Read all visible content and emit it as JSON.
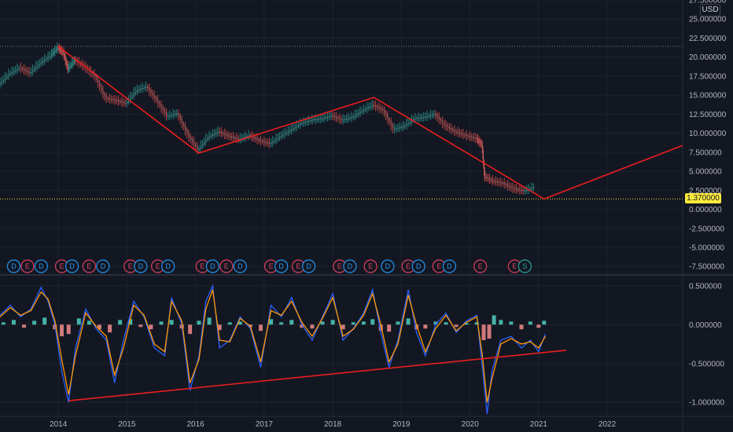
{
  "currency": "USD",
  "last_price_label": "1.370000",
  "chart_data": [
    {
      "type": "line",
      "title": "",
      "ylim": [
        -8.3,
        27.5
      ],
      "y_ticks": [
        "27.500000",
        "25.000000",
        "22.500000",
        "20.000000",
        "17.500000",
        "15.000000",
        "12.500000",
        "10.000000",
        "7.500000",
        "5.000000",
        "2.500000",
        "0.000000",
        "-2.500000",
        "-5.000000",
        "-7.500000"
      ],
      "y_tick_values": [
        27.5,
        25,
        22.5,
        20,
        17.5,
        15,
        12.5,
        10,
        7.5,
        5,
        2.5,
        0,
        -2.5,
        -5,
        -7.5
      ],
      "x_ticks": [
        "2014",
        "2015",
        "2016",
        "2017",
        "2018",
        "2019",
        "2020",
        "2021",
        "2022"
      ],
      "x_tick_values": [
        2014,
        2015,
        2016,
        2017,
        2018,
        2019,
        2020,
        2021,
        2022
      ],
      "xlim": [
        2013.15,
        2023.1
      ],
      "last_price": 1.37,
      "resistance_level": 21.4,
      "price": [
        [
          2013.15,
          16.4
        ],
        [
          2013.3,
          17.8
        ],
        [
          2013.45,
          18.6
        ],
        [
          2013.6,
          17.9
        ],
        [
          2013.75,
          19.2
        ],
        [
          2013.9,
          20.2
        ],
        [
          2014.0,
          21.2
        ],
        [
          2014.08,
          20.6
        ],
        [
          2014.15,
          18.4
        ],
        [
          2014.25,
          19.6
        ],
        [
          2014.4,
          18.7
        ],
        [
          2014.55,
          17.5
        ],
        [
          2014.7,
          14.6
        ],
        [
          2014.85,
          14.3
        ],
        [
          2015.0,
          13.9
        ],
        [
          2015.15,
          15.6
        ],
        [
          2015.3,
          16.1
        ],
        [
          2015.45,
          14.3
        ],
        [
          2015.6,
          12.2
        ],
        [
          2015.75,
          12.6
        ],
        [
          2015.9,
          9.8
        ],
        [
          2016.05,
          7.8
        ],
        [
          2016.2,
          9.5
        ],
        [
          2016.35,
          10.2
        ],
        [
          2016.5,
          9.6
        ],
        [
          2016.65,
          9.2
        ],
        [
          2016.8,
          9.7
        ],
        [
          2016.95,
          9.0
        ],
        [
          2017.1,
          8.6
        ],
        [
          2017.25,
          9.6
        ],
        [
          2017.4,
          10.4
        ],
        [
          2017.55,
          11.3
        ],
        [
          2017.7,
          11.7
        ],
        [
          2017.85,
          11.9
        ],
        [
          2018.0,
          12.3
        ],
        [
          2018.15,
          11.7
        ],
        [
          2018.3,
          12.1
        ],
        [
          2018.45,
          13.0
        ],
        [
          2018.6,
          13.7
        ],
        [
          2018.75,
          13.0
        ],
        [
          2018.9,
          10.5
        ],
        [
          2019.05,
          10.9
        ],
        [
          2019.2,
          11.9
        ],
        [
          2019.35,
          12.1
        ],
        [
          2019.5,
          12.5
        ],
        [
          2019.65,
          11.0
        ],
        [
          2019.8,
          10.2
        ],
        [
          2019.95,
          9.7
        ],
        [
          2020.1,
          9.3
        ],
        [
          2020.18,
          8.5
        ],
        [
          2020.22,
          4.3
        ],
        [
          2020.35,
          3.7
        ],
        [
          2020.5,
          3.4
        ],
        [
          2020.65,
          2.7
        ],
        [
          2020.8,
          2.4
        ],
        [
          2020.95,
          2.9
        ]
      ],
      "trendline": [
        [
          2014.0,
          21.4
        ],
        [
          2016.05,
          7.4
        ],
        [
          2018.6,
          14.7
        ],
        [
          2021.08,
          1.37
        ],
        [
          2023.1,
          8.4
        ]
      ],
      "events": [
        {
          "label": "D",
          "kind": "dividend",
          "x": 2013.35
        },
        {
          "label": "E",
          "kind": "earnings",
          "x": 2013.55
        },
        {
          "label": "D",
          "kind": "dividend",
          "x": 2013.75
        },
        {
          "label": "E",
          "kind": "earnings",
          "x": 2014.05
        },
        {
          "label": "D",
          "kind": "dividend",
          "x": 2014.2
        },
        {
          "label": "E",
          "kind": "earnings",
          "x": 2014.45
        },
        {
          "label": "D",
          "kind": "dividend",
          "x": 2014.65
        },
        {
          "label": "E",
          "kind": "earnings",
          "x": 2015.05
        },
        {
          "label": "D",
          "kind": "dividend",
          "x": 2015.2
        },
        {
          "label": "E",
          "kind": "earnings",
          "x": 2015.45
        },
        {
          "label": "D",
          "kind": "dividend",
          "x": 2015.6
        },
        {
          "label": "E",
          "kind": "earnings",
          "x": 2016.1
        },
        {
          "label": "D",
          "kind": "dividend",
          "x": 2016.25
        },
        {
          "label": "E",
          "kind": "earnings",
          "x": 2016.45
        },
        {
          "label": "D",
          "kind": "dividend",
          "x": 2016.65
        },
        {
          "label": "E",
          "kind": "earnings",
          "x": 2017.1
        },
        {
          "label": "D",
          "kind": "dividend",
          "x": 2017.25
        },
        {
          "label": "E",
          "kind": "earnings",
          "x": 2017.5
        },
        {
          "label": "D",
          "kind": "dividend",
          "x": 2017.65
        },
        {
          "label": "E",
          "kind": "earnings",
          "x": 2018.1
        },
        {
          "label": "D",
          "kind": "dividend",
          "x": 2018.25
        },
        {
          "label": "E",
          "kind": "earnings",
          "x": 2018.55
        },
        {
          "label": "D",
          "kind": "dividend",
          "x": 2018.8
        },
        {
          "label": "E",
          "kind": "earnings",
          "x": 2019.1
        },
        {
          "label": "D",
          "kind": "dividend",
          "x": 2019.25
        },
        {
          "label": "E",
          "kind": "earnings",
          "x": 2019.55
        },
        {
          "label": "D",
          "kind": "dividend",
          "x": 2019.7
        },
        {
          "label": "E",
          "kind": "earnings",
          "x": 2020.15
        },
        {
          "label": "E",
          "kind": "earnings",
          "x": 2020.65
        },
        {
          "label": "S",
          "kind": "split",
          "x": 2020.8
        }
      ]
    },
    {
      "type": "line",
      "title": "",
      "ylim": [
        -1.18,
        0.62
      ],
      "y_ticks": [
        "0.500000",
        "0.000000",
        "-0.500000",
        "-1.000000"
      ],
      "y_tick_values": [
        0.5,
        0.0,
        -0.5,
        -1.0
      ],
      "series": [
        {
          "color": "#2962ff",
          "values": [
            [
              2013.15,
              0.12
            ],
            [
              2013.3,
              0.25
            ],
            [
              2013.45,
              0.1
            ],
            [
              2013.6,
              0.2
            ],
            [
              2013.75,
              0.48
            ],
            [
              2013.85,
              0.3
            ],
            [
              2013.95,
              0.0
            ],
            [
              2014.05,
              -0.6
            ],
            [
              2014.15,
              -1.0
            ],
            [
              2014.25,
              -0.3
            ],
            [
              2014.4,
              0.2
            ],
            [
              2014.55,
              -0.05
            ],
            [
              2014.7,
              -0.2
            ],
            [
              2014.82,
              -0.75
            ],
            [
              2014.95,
              -0.2
            ],
            [
              2015.1,
              0.3
            ],
            [
              2015.25,
              0.1
            ],
            [
              2015.4,
              -0.3
            ],
            [
              2015.55,
              -0.4
            ],
            [
              2015.65,
              0.35
            ],
            [
              2015.8,
              0.0
            ],
            [
              2015.92,
              -0.85
            ],
            [
              2016.05,
              -0.4
            ],
            [
              2016.15,
              0.3
            ],
            [
              2016.25,
              0.5
            ],
            [
              2016.35,
              -0.3
            ],
            [
              2016.5,
              -0.2
            ],
            [
              2016.65,
              0.1
            ],
            [
              2016.8,
              -0.05
            ],
            [
              2016.95,
              -0.55
            ],
            [
              2017.1,
              0.25
            ],
            [
              2017.25,
              0.1
            ],
            [
              2017.4,
              0.35
            ],
            [
              2017.55,
              0.0
            ],
            [
              2017.7,
              -0.2
            ],
            [
              2017.85,
              0.1
            ],
            [
              2018.0,
              0.4
            ],
            [
              2018.15,
              -0.2
            ],
            [
              2018.3,
              -0.05
            ],
            [
              2018.45,
              0.15
            ],
            [
              2018.58,
              0.45
            ],
            [
              2018.7,
              -0.1
            ],
            [
              2018.82,
              -0.55
            ],
            [
              2018.95,
              -0.2
            ],
            [
              2019.1,
              0.45
            ],
            [
              2019.22,
              -0.1
            ],
            [
              2019.35,
              -0.4
            ],
            [
              2019.5,
              0.0
            ],
            [
              2019.65,
              0.15
            ],
            [
              2019.8,
              -0.1
            ],
            [
              2019.95,
              0.05
            ],
            [
              2020.1,
              0.12
            ],
            [
              2020.18,
              -0.55
            ],
            [
              2020.25,
              -1.15
            ],
            [
              2020.32,
              -0.6
            ],
            [
              2020.45,
              -0.2
            ],
            [
              2020.6,
              -0.15
            ],
            [
              2020.75,
              -0.3
            ],
            [
              2020.88,
              -0.2
            ],
            [
              2021.0,
              -0.35
            ],
            [
              2021.1,
              -0.12
            ]
          ]
        },
        {
          "color": "#ff9800",
          "values": [
            [
              2013.15,
              0.1
            ],
            [
              2013.3,
              0.22
            ],
            [
              2013.45,
              0.12
            ],
            [
              2013.6,
              0.18
            ],
            [
              2013.75,
              0.42
            ],
            [
              2013.85,
              0.33
            ],
            [
              2013.95,
              0.05
            ],
            [
              2014.05,
              -0.45
            ],
            [
              2014.15,
              -0.9
            ],
            [
              2014.25,
              -0.4
            ],
            [
              2014.4,
              0.15
            ],
            [
              2014.55,
              -0.02
            ],
            [
              2014.7,
              -0.15
            ],
            [
              2014.82,
              -0.65
            ],
            [
              2014.95,
              -0.3
            ],
            [
              2015.1,
              0.25
            ],
            [
              2015.25,
              0.12
            ],
            [
              2015.4,
              -0.25
            ],
            [
              2015.55,
              -0.35
            ],
            [
              2015.65,
              0.3
            ],
            [
              2015.8,
              0.05
            ],
            [
              2015.92,
              -0.75
            ],
            [
              2016.05,
              -0.45
            ],
            [
              2016.15,
              0.2
            ],
            [
              2016.25,
              0.45
            ],
            [
              2016.35,
              -0.2
            ],
            [
              2016.5,
              -0.22
            ],
            [
              2016.65,
              0.08
            ],
            [
              2016.8,
              -0.02
            ],
            [
              2016.95,
              -0.48
            ],
            [
              2017.1,
              0.18
            ],
            [
              2017.25,
              0.12
            ],
            [
              2017.4,
              0.3
            ],
            [
              2017.55,
              0.03
            ],
            [
              2017.7,
              -0.15
            ],
            [
              2017.85,
              0.08
            ],
            [
              2018.0,
              0.35
            ],
            [
              2018.15,
              -0.15
            ],
            [
              2018.3,
              -0.06
            ],
            [
              2018.45,
              0.12
            ],
            [
              2018.58,
              0.4
            ],
            [
              2018.7,
              0.0
            ],
            [
              2018.82,
              -0.48
            ],
            [
              2018.95,
              -0.25
            ],
            [
              2019.1,
              0.38
            ],
            [
              2019.22,
              0.0
            ],
            [
              2019.35,
              -0.35
            ],
            [
              2019.5,
              -0.05
            ],
            [
              2019.65,
              0.12
            ],
            [
              2019.8,
              -0.08
            ],
            [
              2019.95,
              0.03
            ],
            [
              2020.1,
              0.1
            ],
            [
              2020.18,
              -0.4
            ],
            [
              2020.25,
              -1.0
            ],
            [
              2020.32,
              -0.7
            ],
            [
              2020.45,
              -0.25
            ],
            [
              2020.6,
              -0.18
            ],
            [
              2020.75,
              -0.25
            ],
            [
              2020.88,
              -0.22
            ],
            [
              2021.0,
              -0.3
            ],
            [
              2021.1,
              -0.15
            ]
          ]
        }
      ],
      "histogram": [
        [
          2013.2,
          0.03
        ],
        [
          2013.35,
          0.06
        ],
        [
          2013.5,
          -0.04
        ],
        [
          2013.65,
          0.05
        ],
        [
          2013.8,
          0.09
        ],
        [
          2013.95,
          -0.06
        ],
        [
          2014.05,
          -0.15
        ],
        [
          2014.15,
          -0.12
        ],
        [
          2014.3,
          0.08
        ],
        [
          2014.45,
          0.05
        ],
        [
          2014.6,
          -0.06
        ],
        [
          2014.75,
          -0.1
        ],
        [
          2014.9,
          0.06
        ],
        [
          2015.05,
          0.07
        ],
        [
          2015.2,
          -0.03
        ],
        [
          2015.35,
          -0.06
        ],
        [
          2015.5,
          0.04
        ],
        [
          2015.65,
          0.06
        ],
        [
          2015.8,
          -0.05
        ],
        [
          2015.92,
          -0.12
        ],
        [
          2016.05,
          0.05
        ],
        [
          2016.2,
          0.09
        ],
        [
          2016.35,
          -0.07
        ],
        [
          2016.5,
          0.03
        ],
        [
          2016.65,
          0.04
        ],
        [
          2016.8,
          -0.03
        ],
        [
          2016.95,
          -0.08
        ],
        [
          2017.1,
          0.07
        ],
        [
          2017.25,
          0.03
        ],
        [
          2017.4,
          0.06
        ],
        [
          2017.55,
          -0.04
        ],
        [
          2017.7,
          -0.05
        ],
        [
          2017.85,
          0.04
        ],
        [
          2018.0,
          0.06
        ],
        [
          2018.15,
          -0.06
        ],
        [
          2018.3,
          0.03
        ],
        [
          2018.45,
          0.04
        ],
        [
          2018.58,
          0.07
        ],
        [
          2018.7,
          -0.08
        ],
        [
          2018.82,
          -0.09
        ],
        [
          2018.95,
          0.04
        ],
        [
          2019.1,
          0.08
        ],
        [
          2019.22,
          -0.06
        ],
        [
          2019.35,
          -0.05
        ],
        [
          2019.5,
          0.04
        ],
        [
          2019.65,
          0.03
        ],
        [
          2019.8,
          -0.03
        ],
        [
          2019.95,
          0.02
        ],
        [
          2020.1,
          0.03
        ],
        [
          2020.2,
          -0.2
        ],
        [
          2020.28,
          -0.18
        ],
        [
          2020.35,
          0.12
        ],
        [
          2020.45,
          0.06
        ],
        [
          2020.6,
          0.04
        ],
        [
          2020.75,
          -0.06
        ],
        [
          2020.88,
          0.04
        ],
        [
          2021.0,
          -0.04
        ],
        [
          2021.08,
          0.05
        ]
      ],
      "trendline": [
        [
          2014.15,
          -0.98
        ],
        [
          2021.4,
          -0.33
        ]
      ]
    }
  ]
}
